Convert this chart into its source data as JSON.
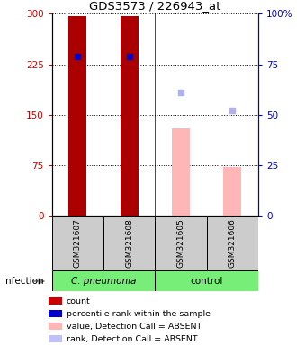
{
  "title": "GDS3573 / 226943_at",
  "samples": [
    "GSM321607",
    "GSM321608",
    "GSM321605",
    "GSM321606"
  ],
  "count_values": [
    297,
    296,
    130,
    72
  ],
  "count_present": [
    true,
    true,
    false,
    false
  ],
  "rank_pct_values": [
    79,
    79,
    null,
    null
  ],
  "rank_absent_pct": [
    null,
    null,
    61,
    52
  ],
  "bar_color_present": "#aa0000",
  "bar_color_absent": "#ffb6b6",
  "rank_color_present": "#0000cc",
  "rank_color_absent": "#b0b0ee",
  "ylim_left": [
    0,
    300
  ],
  "ylim_right": [
    0,
    100
  ],
  "yticks_left": [
    0,
    75,
    150,
    225,
    300
  ],
  "yticks_right": [
    0,
    25,
    50,
    75,
    100
  ],
  "ytick_labels_left": [
    "0",
    "75",
    "150",
    "225",
    "300"
  ],
  "ytick_labels_right": [
    "0",
    "25",
    "50",
    "75",
    "100%"
  ],
  "left_color": "#cc0000",
  "right_color": "#0000cc",
  "group_label": "infection",
  "cpneumonia_label": "C. pneumonia",
  "control_label": "control",
  "group_color": "#77ee77",
  "sample_box_color": "#cccccc",
  "legend_items": [
    {
      "color": "#cc0000",
      "label": "count"
    },
    {
      "color": "#0000cc",
      "label": "percentile rank within the sample"
    },
    {
      "color": "#ffb6b6",
      "label": "value, Detection Call = ABSENT"
    },
    {
      "color": "#c0c0f8",
      "label": "rank, Detection Call = ABSENT"
    }
  ]
}
